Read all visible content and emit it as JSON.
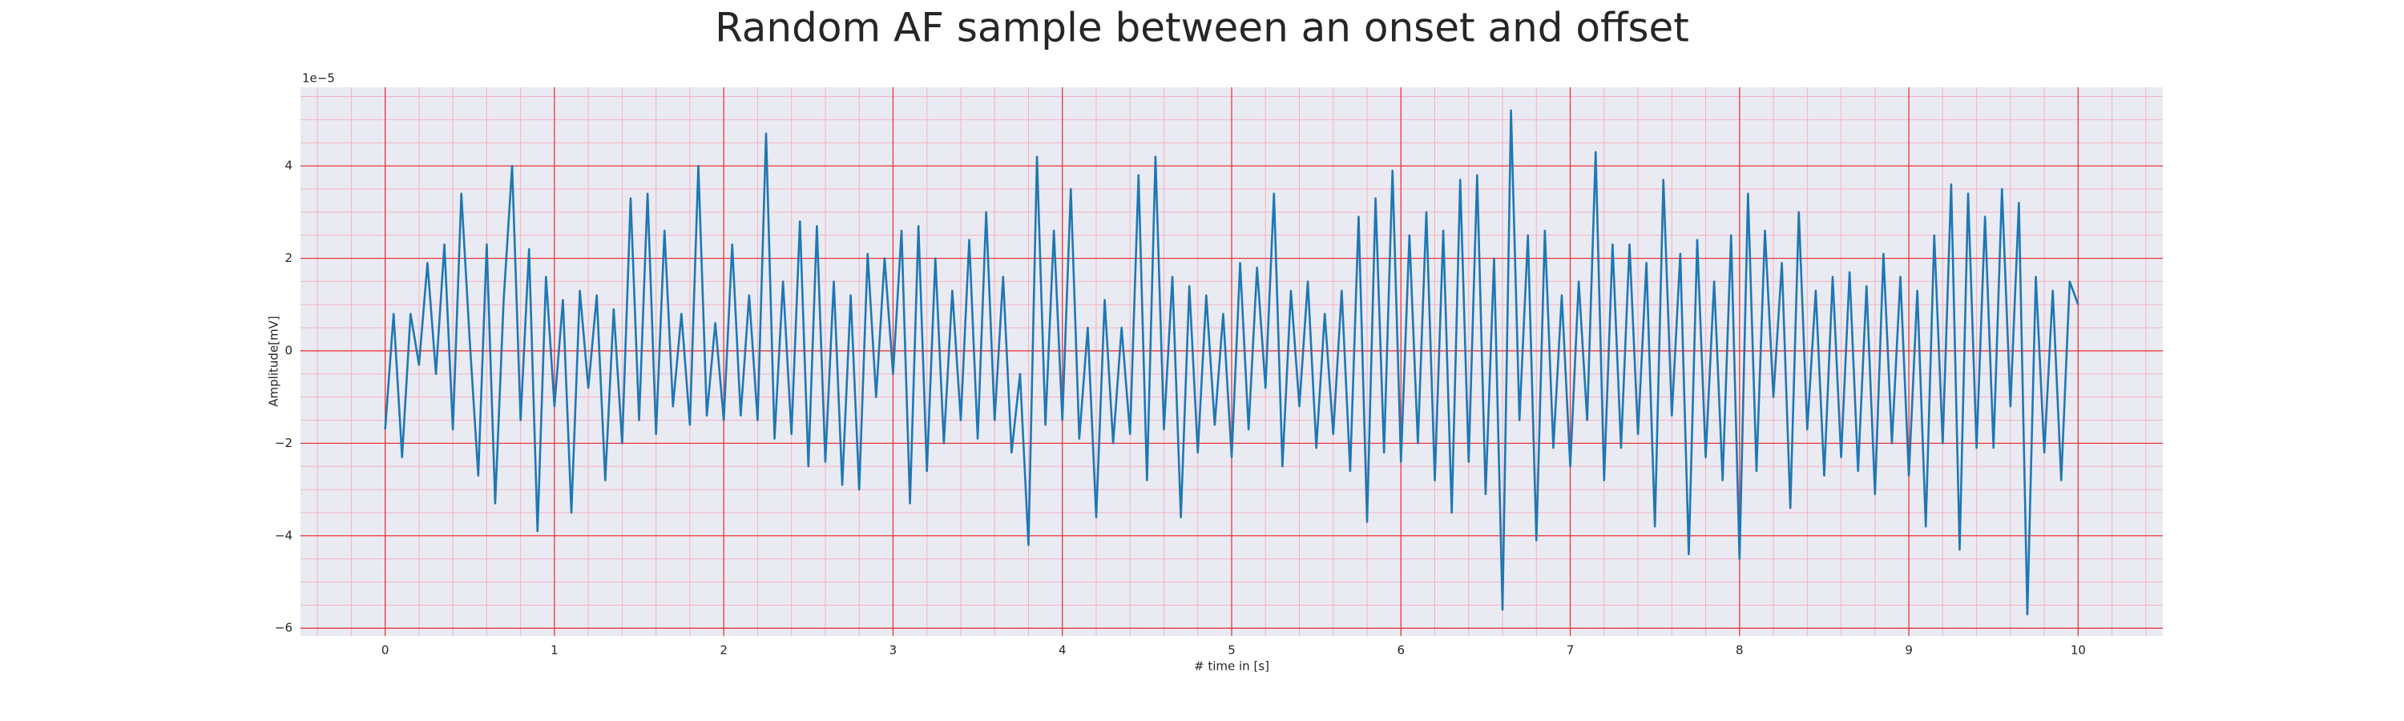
{
  "chart_data": {
    "type": "line",
    "title": "Random AF sample between an onset and offset",
    "xlabel": "# time in [s]",
    "ylabel": "Amplitude[mV]",
    "y_offset_label": "1e−5",
    "xlim": [
      -0.5,
      10.5
    ],
    "ylim": [
      -6.17,
      5.7
    ],
    "xticks": [
      0,
      1,
      2,
      3,
      4,
      5,
      6,
      7,
      8,
      9,
      10
    ],
    "yticks": [
      {
        "value": -6,
        "label": "−6"
      },
      {
        "value": -4,
        "label": "−4"
      },
      {
        "value": -2,
        "label": "−2"
      },
      0,
      2,
      4
    ],
    "grid": true,
    "grid_color": "#e8393c",
    "minor_grid_color": "#f2b3c0",
    "minor_step_x": 0.2,
    "minor_step_y": 0.5,
    "background": "#eaeaf2",
    "x": [
      0,
      0.05,
      0.1,
      0.15,
      0.2,
      0.25,
      0.3,
      0.35,
      0.4,
      0.45,
      0.5,
      0.55,
      0.6,
      0.65,
      0.7,
      0.75,
      0.8,
      0.85,
      0.9,
      0.95,
      1,
      1.05,
      1.1,
      1.15,
      1.2,
      1.25,
      1.3,
      1.35,
      1.4,
      1.45,
      1.5,
      1.55,
      1.6,
      1.65,
      1.7,
      1.75,
      1.8,
      1.85,
      1.9,
      1.95,
      2,
      2.05,
      2.1,
      2.15,
      2.2,
      2.25,
      2.3,
      2.35,
      2.4,
      2.45,
      2.5,
      2.55,
      2.6,
      2.65,
      2.7,
      2.75,
      2.8,
      2.85,
      2.9,
      2.95,
      3,
      3.05,
      3.1,
      3.15,
      3.2,
      3.25,
      3.3,
      3.35,
      3.4,
      3.45,
      3.5,
      3.55,
      3.6,
      3.65,
      3.7,
      3.75,
      3.8,
      3.85,
      3.9,
      3.95,
      4,
      4.05,
      4.1,
      4.15,
      4.2,
      4.25,
      4.3,
      4.35,
      4.4,
      4.45,
      4.5,
      4.55,
      4.6,
      4.65,
      4.7,
      4.75,
      4.8,
      4.85,
      4.9,
      4.95,
      5,
      5.05,
      5.1,
      5.15,
      5.2,
      5.25,
      5.3,
      5.35,
      5.4,
      5.45,
      5.5,
      5.55,
      5.6,
      5.65,
      5.7,
      5.75,
      5.8,
      5.85,
      5.9,
      5.95,
      6,
      6.05,
      6.1,
      6.15,
      6.2,
      6.25,
      6.3,
      6.35,
      6.4,
      6.45,
      6.5,
      6.55,
      6.6,
      6.65,
      6.7,
      6.75,
      6.8,
      6.85,
      6.9,
      6.95,
      7,
      7.05,
      7.1,
      7.15,
      7.2,
      7.25,
      7.3,
      7.35,
      7.4,
      7.45,
      7.5,
      7.55,
      7.6,
      7.65,
      7.7,
      7.75,
      7.8,
      7.85,
      7.9,
      7.95,
      8,
      8.05,
      8.1,
      8.15,
      8.2,
      8.25,
      8.3,
      8.35,
      8.4,
      8.45,
      8.5,
      8.55,
      8.6,
      8.65,
      8.7,
      8.75,
      8.8,
      8.85,
      8.9,
      8.95,
      9,
      9.05,
      9.1,
      9.15,
      9.2,
      9.25,
      9.3,
      9.35,
      9.4,
      9.45,
      9.5,
      9.55,
      9.6,
      9.65,
      9.7,
      9.75,
      9.8,
      9.85,
      9.9,
      9.95,
      10
    ],
    "series": [
      {
        "color": "#1f77b4",
        "values": [
          -1.7,
          0.8,
          -2.3,
          0.8,
          -0.3,
          1.9,
          -0.5,
          2.3,
          -1.7,
          3.4,
          0.2,
          -2.7,
          2.3,
          -3.3,
          1.1,
          4.0,
          -1.5,
          2.2,
          -3.9,
          1.6,
          -1.2,
          1.1,
          -3.5,
          1.3,
          -0.8,
          1.2,
          -2.8,
          0.9,
          -2.0,
          3.3,
          -1.5,
          3.4,
          -1.8,
          2.6,
          -1.2,
          0.8,
          -1.6,
          4.0,
          -1.4,
          0.6,
          -1.5,
          2.3,
          -1.4,
          1.2,
          -1.5,
          4.7,
          -1.9,
          1.5,
          -1.8,
          2.8,
          -2.5,
          2.7,
          -2.4,
          1.5,
          -2.9,
          1.2,
          -3.0,
          2.1,
          -1.0,
          2.0,
          -0.5,
          2.6,
          -3.3,
          2.7,
          -2.6,
          2.0,
          -2.0,
          1.3,
          -1.5,
          2.4,
          -1.9,
          3.0,
          -1.5,
          1.6,
          -2.2,
          -0.5,
          -4.2,
          4.2,
          -1.6,
          2.6,
          -1.5,
          3.5,
          -1.9,
          0.5,
          -3.6,
          1.1,
          -2.0,
          0.5,
          -1.8,
          3.8,
          -2.8,
          4.2,
          -1.7,
          1.6,
          -3.6,
          1.4,
          -2.2,
          1.2,
          -1.6,
          0.8,
          -2.3,
          1.9,
          -1.7,
          1.8,
          -0.8,
          3.4,
          -2.5,
          1.3,
          -1.2,
          1.5,
          -2.1,
          0.8,
          -1.8,
          1.3,
          -2.6,
          2.9,
          -3.7,
          3.3,
          -2.2,
          3.9,
          -2.4,
          2.5,
          -2.0,
          3.0,
          -2.8,
          2.6,
          -3.5,
          3.7,
          -2.4,
          3.8,
          -3.1,
          2.0,
          -5.6,
          5.2,
          -1.5,
          2.5,
          -4.1,
          2.6,
          -2.1,
          1.2,
          -2.5,
          1.5,
          -1.5,
          4.3,
          -2.8,
          2.3,
          -2.1,
          2.3,
          -1.8,
          1.9,
          -3.8,
          3.7,
          -1.4,
          2.1,
          -4.4,
          2.4,
          -2.3,
          1.5,
          -2.8,
          2.5,
          -4.5,
          3.4,
          -2.6,
          2.6,
          -1.0,
          1.9,
          -3.4,
          3.0,
          -1.7,
          1.3,
          -2.7,
          1.6,
          -2.3,
          1.7,
          -2.6,
          1.4,
          -3.1,
          2.1,
          -2.0,
          1.6,
          -2.7,
          1.3,
          -3.8,
          2.5,
          -2.0,
          3.6,
          -4.3,
          3.4,
          -2.1,
          2.9,
          -2.1,
          3.5,
          -1.2,
          3.2,
          -5.7,
          1.6,
          -2.2,
          1.3,
          -2.8,
          1.5,
          1.0
        ]
      }
    ]
  }
}
